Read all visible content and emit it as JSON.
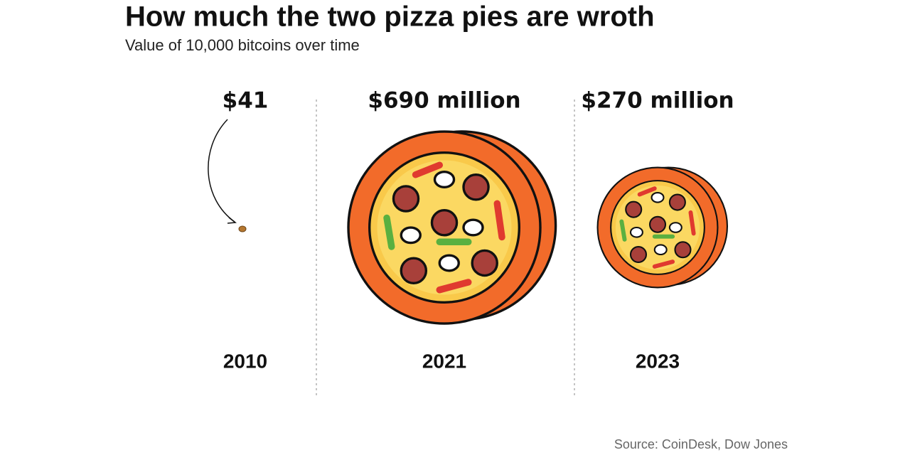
{
  "chart_data": {
    "type": "pizza",
    "title": "How much the two pizza pies are wroth",
    "subtitle": "Value of 10,000 bitcoins over time",
    "categories": [
      "2010",
      "2021",
      "2023"
    ],
    "values": [
      41,
      690000000,
      270000000
    ],
    "value_labels": [
      "$41",
      "$690 million",
      "$270 million"
    ],
    "source": "Source: CoinDesk, Dow Jones"
  }
}
